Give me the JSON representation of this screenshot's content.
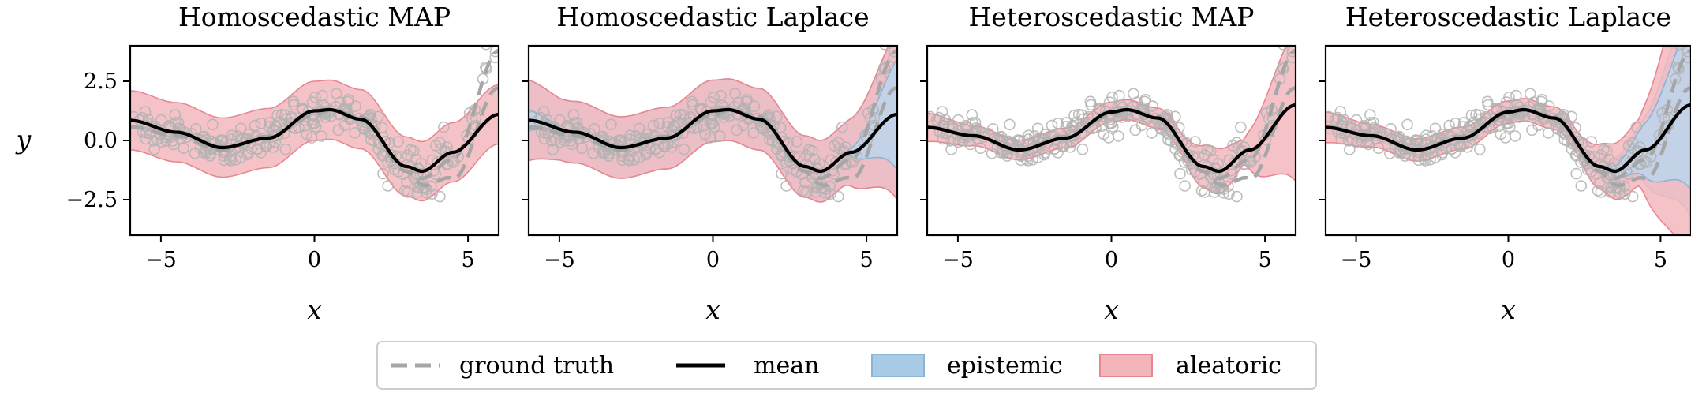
{
  "legend": {
    "placement": "bottom-center",
    "entries": [
      {
        "label": "ground truth",
        "style": "dashed-line",
        "color": "#a6a6a6"
      },
      {
        "label": "mean",
        "style": "solid-line",
        "color": "#000000"
      },
      {
        "label": "epistemic",
        "style": "patch",
        "color": "#a9cbe6"
      },
      {
        "label": "aleatoric",
        "style": "patch",
        "color": "#f2b5ba"
      }
    ]
  },
  "colors": {
    "ground_truth": "#a6a6a6",
    "mean": "#000000",
    "epistemic_fill": "#bcd6ec",
    "epistemic_edge": "#8ab4d8",
    "aleatoric_fill": "#f3b8bd",
    "aleatoric_edge": "#e88791",
    "scatter": "#b3b3b3"
  },
  "chart_data": [
    {
      "type": "line",
      "title": "Homoscedastic MAP",
      "xlabel": "x",
      "ylabel": "y",
      "xlim": [
        -6,
        6
      ],
      "ylim": [
        -4,
        4
      ],
      "xticks": [
        -5,
        0,
        5
      ],
      "xtick_labels": [
        "−5",
        "0",
        "5"
      ],
      "yticks": [
        2.5,
        0,
        -2.5
      ],
      "ytick_labels": [
        "2.5",
        "0.0",
        "−2.5"
      ],
      "grid": false,
      "aleatoric": "homoscedastic",
      "epistemic_region": "none",
      "series": [
        {
          "name": "ground truth",
          "x": [
            -6,
            -4.5,
            -3,
            -1.5,
            0,
            0.5,
            1.5,
            3,
            3.5,
            4.5,
            6
          ],
          "y": [
            0.58,
            0.2,
            -0.4,
            0.18,
            1.05,
            1.3,
            1.0,
            -1.3,
            -1.6,
            -0.8,
            3.8
          ]
        },
        {
          "name": "mean",
          "x": [
            -6,
            -4.5,
            -3,
            -1.5,
            0,
            0.5,
            1.5,
            3,
            3.5,
            4.5,
            6
          ],
          "y": [
            0.85,
            0.35,
            -0.3,
            0.1,
            1.25,
            1.3,
            0.9,
            -1.1,
            -1.3,
            -0.5,
            1.1
          ]
        }
      ]
    },
    {
      "type": "line",
      "title": "Homoscedastic Laplace",
      "xlabel": "x",
      "ylabel": "",
      "xlim": [
        -6,
        6
      ],
      "ylim": [
        -4,
        4
      ],
      "xticks": [
        -5,
        0,
        5
      ],
      "xtick_labels": [
        "−5",
        "0",
        "5"
      ],
      "yticks": [
        2.5,
        0,
        -2.5
      ],
      "ytick_labels": [],
      "grid": false,
      "aleatoric": "homoscedastic",
      "epistemic_region": "edges",
      "series": [
        {
          "name": "ground truth",
          "x": [
            -6,
            -4.5,
            -3,
            -1.5,
            0,
            0.5,
            1.5,
            3,
            3.5,
            4.5,
            6
          ],
          "y": [
            0.58,
            0.2,
            -0.4,
            0.18,
            1.05,
            1.3,
            1.0,
            -1.3,
            -1.6,
            -0.8,
            3.8
          ]
        },
        {
          "name": "mean",
          "x": [
            -6,
            -4.5,
            -3,
            -1.5,
            0,
            0.5,
            1.5,
            3,
            3.5,
            4.5,
            6
          ],
          "y": [
            0.85,
            0.35,
            -0.3,
            0.1,
            1.25,
            1.3,
            0.9,
            -1.1,
            -1.3,
            -0.5,
            1.1
          ]
        }
      ]
    },
    {
      "type": "line",
      "title": "Heteroscedastic MAP",
      "xlabel": "x",
      "ylabel": "",
      "xlim": [
        -6,
        6
      ],
      "ylim": [
        -4,
        4
      ],
      "xticks": [
        -5,
        0,
        5
      ],
      "xtick_labels": [
        "−5",
        "0",
        "5"
      ],
      "yticks": [
        2.5,
        0,
        -2.5
      ],
      "ytick_labels": [],
      "grid": false,
      "aleatoric": "heteroscedastic",
      "epistemic_region": "none",
      "series": [
        {
          "name": "ground truth",
          "x": [
            -6,
            -4.5,
            -3,
            -1.5,
            0,
            0.5,
            1.5,
            3,
            3.5,
            4.5,
            6
          ],
          "y": [
            0.58,
            0.2,
            -0.4,
            0.18,
            1.05,
            1.3,
            1.0,
            -1.3,
            -1.6,
            -0.8,
            3.8
          ]
        },
        {
          "name": "mean",
          "x": [
            -6,
            -4.5,
            -3,
            -1.5,
            0,
            0.5,
            1.5,
            3,
            3.5,
            4.5,
            6
          ],
          "y": [
            0.55,
            0.2,
            -0.4,
            0.1,
            1.2,
            1.3,
            0.95,
            -1.1,
            -1.3,
            -0.4,
            1.5
          ]
        }
      ]
    },
    {
      "type": "line",
      "title": "Heteroscedastic Laplace",
      "xlabel": "x",
      "ylabel": "",
      "xlim": [
        -6,
        6
      ],
      "ylim": [
        -4,
        4
      ],
      "xticks": [
        -5,
        0,
        5
      ],
      "xtick_labels": [
        "−5",
        "0",
        "5"
      ],
      "yticks": [
        2.5,
        0,
        -2.5
      ],
      "ytick_labels": [],
      "grid": false,
      "aleatoric": "heteroscedastic",
      "epistemic_region": "right",
      "series": [
        {
          "name": "ground truth",
          "x": [
            -6,
            -4.5,
            -3,
            -1.5,
            0,
            0.5,
            1.5,
            3,
            3.5,
            4.5,
            6
          ],
          "y": [
            0.58,
            0.2,
            -0.4,
            0.18,
            1.05,
            1.3,
            1.0,
            -1.3,
            -1.6,
            -0.8,
            3.8
          ]
        },
        {
          "name": "mean",
          "x": [
            -6,
            -4.5,
            -3,
            -1.5,
            0,
            0.5,
            1.5,
            3,
            3.5,
            4.5,
            6
          ],
          "y": [
            0.55,
            0.2,
            -0.4,
            0.1,
            1.2,
            1.3,
            0.95,
            -1.1,
            -1.3,
            -0.4,
            1.5
          ]
        }
      ]
    }
  ]
}
